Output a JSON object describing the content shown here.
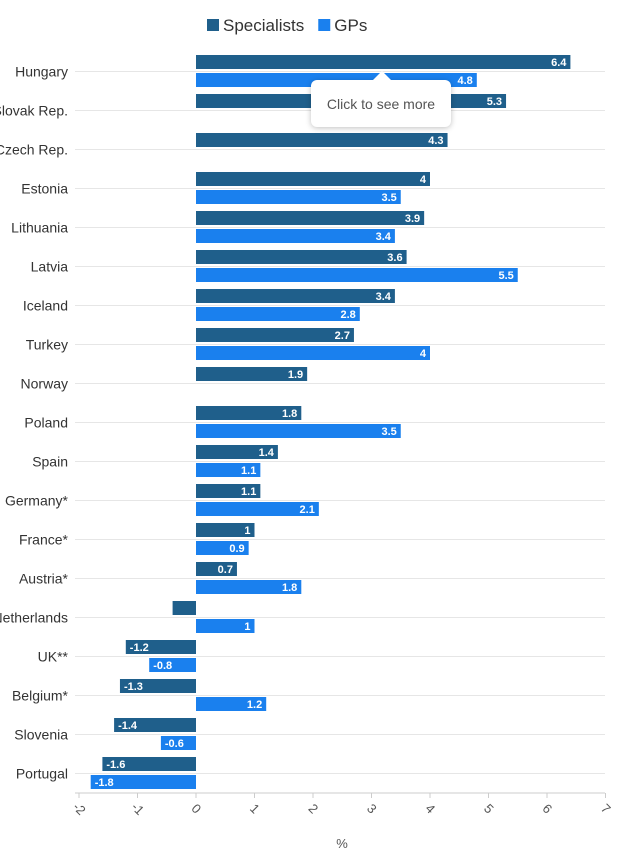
{
  "chart_data": {
    "type": "bar",
    "orientation": "horizontal",
    "categories": [
      "Hungary",
      "Slovak Rep.",
      "Czech Rep.",
      "Estonia",
      "Lithuania",
      "Latvia",
      "Iceland",
      "Turkey",
      "Norway",
      "Poland",
      "Spain",
      "Germany*",
      "France*",
      "Austria*",
      "Netherlands",
      "UK**",
      "Belgium*",
      "Slovenia",
      "Portugal"
    ],
    "series": [
      {
        "name": "Specialists",
        "color": "#1f5f8b",
        "values": [
          6.4,
          5.3,
          4.3,
          4,
          3.9,
          3.6,
          3.4,
          2.7,
          1.9,
          1.8,
          1.4,
          1.1,
          1,
          0.7,
          -0.4,
          -1.2,
          -1.3,
          -1.4,
          -1.6
        ],
        "labels": [
          "6.4",
          "5.3",
          "4.3",
          "4",
          "3.9",
          "3.6",
          "3.4",
          "2.7",
          "1.9",
          "1.8",
          "1.4",
          "1.1",
          "1",
          "0.7",
          "",
          "-1.2",
          "-1.3",
          "-1.4",
          "-1.6"
        ]
      },
      {
        "name": "GPs",
        "color": "#1a80ee",
        "values": [
          4.8,
          null,
          null,
          3.5,
          3.4,
          5.5,
          2.8,
          4,
          null,
          3.5,
          1.1,
          2.1,
          0.9,
          1.8,
          1,
          -0.8,
          1.2,
          -0.6,
          -1.8
        ],
        "labels": [
          "4.8",
          "",
          "",
          "3.5",
          "3.4",
          "5.5",
          "2.8",
          "4",
          "",
          "3.5",
          "1.1",
          "2.1",
          "0.9",
          "1.8",
          "1",
          "-0.8",
          "1.2",
          "-0.6",
          "-1.8"
        ]
      }
    ],
    "xlim": [
      -2,
      7
    ],
    "xticks": [
      "-2",
      "-1",
      "0",
      "1",
      "2",
      "3",
      "4",
      "5",
      "6",
      "7"
    ],
    "xlabel": "%",
    "ylabel": "",
    "title": "",
    "legend_position": "top-center",
    "grid": true
  },
  "tooltip": {
    "text": "Click to see more"
  }
}
